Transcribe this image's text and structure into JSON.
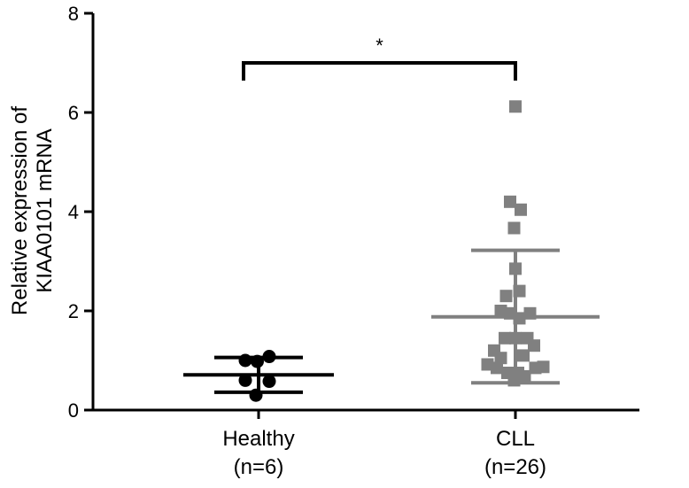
{
  "chart_data": {
    "type": "scatter",
    "title": "",
    "ylabel_line1": "Relative expression of",
    "ylabel_line2": "KIAA0101 mRNA",
    "ylim": [
      0,
      8
    ],
    "yticks": [
      0,
      2,
      4,
      6,
      8
    ],
    "categories": [
      {
        "name": "Healthy",
        "n_label": "(n=6)"
      },
      {
        "name": "CLL",
        "n_label": "(n=26)"
      }
    ],
    "colors": {
      "Healthy": "#000000",
      "CLL": "#808080"
    },
    "marker_shapes": {
      "Healthy": "circle",
      "CLL": "square"
    },
    "groups": [
      {
        "category": "Healthy",
        "mean": 0.71,
        "sd_low": 0.36,
        "sd_high": 1.06,
        "points": [
          {
            "offset": -0.5,
            "y": 1.0
          },
          {
            "offset": -0.05,
            "y": 0.98
          },
          {
            "offset": 0.4,
            "y": 1.08
          },
          {
            "offset": -0.5,
            "y": 0.6
          },
          {
            "offset": 0.4,
            "y": 0.58
          },
          {
            "offset": -0.1,
            "y": 0.3
          }
        ]
      },
      {
        "category": "CLL",
        "mean": 1.88,
        "sd_low": 0.55,
        "sd_high": 3.22,
        "points": [
          {
            "offset": 0.0,
            "y": 6.12
          },
          {
            "offset": -0.2,
            "y": 4.2
          },
          {
            "offset": 0.2,
            "y": 4.04
          },
          {
            "offset": -0.05,
            "y": 3.67
          },
          {
            "offset": 0.0,
            "y": 2.85
          },
          {
            "offset": -0.35,
            "y": 2.3
          },
          {
            "offset": 0.15,
            "y": 2.4
          },
          {
            "offset": -0.55,
            "y": 2.0
          },
          {
            "offset": -0.2,
            "y": 1.95
          },
          {
            "offset": 0.15,
            "y": 1.85
          },
          {
            "offset": 0.55,
            "y": 1.95
          },
          {
            "offset": -0.4,
            "y": 1.45
          },
          {
            "offset": 0.0,
            "y": 1.45
          },
          {
            "offset": 0.45,
            "y": 1.45
          },
          {
            "offset": -0.8,
            "y": 1.2
          },
          {
            "offset": 0.7,
            "y": 1.3
          },
          {
            "offset": -0.55,
            "y": 1.05
          },
          {
            "offset": 0.3,
            "y": 1.1
          },
          {
            "offset": -1.05,
            "y": 0.92
          },
          {
            "offset": -0.7,
            "y": 0.85
          },
          {
            "offset": 0.75,
            "y": 0.85
          },
          {
            "offset": 1.05,
            "y": 0.87
          },
          {
            "offset": -0.3,
            "y": 0.75
          },
          {
            "offset": 0.1,
            "y": 0.75
          },
          {
            "offset": -0.05,
            "y": 0.6
          },
          {
            "offset": 0.35,
            "y": 0.68
          }
        ]
      }
    ],
    "significance": {
      "label": "*",
      "from": "Healthy",
      "to": "CLL",
      "y": 7.0
    }
  }
}
